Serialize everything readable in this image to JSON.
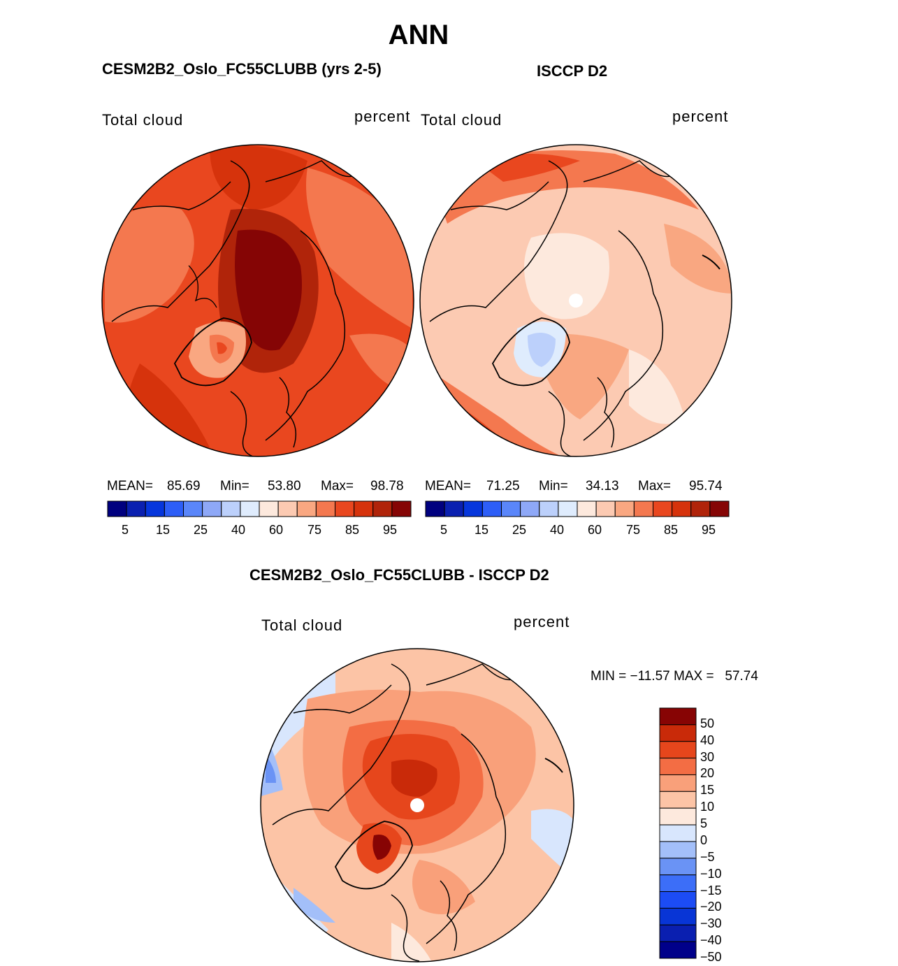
{
  "figure": {
    "title": "ANN"
  },
  "palettes": {
    "abs": [
      "#00007f",
      "#0a20b0",
      "#0636dc",
      "#2d5ef7",
      "#5a86fa",
      "#8ea8f7",
      "#bcd0fb",
      "#dfecfd",
      "#fde9dd",
      "#fccab2",
      "#f9a781",
      "#f4784f",
      "#e9471f",
      "#d6330c",
      "#b0240a",
      "#850505"
    ],
    "diff": [
      "#00008a",
      "#0a1fb0",
      "#0835d6",
      "#1c4cf5",
      "#3c6ef8",
      "#6a93f5",
      "#a3bff9",
      "#d8e6fd",
      "#fde9dd",
      "#fcc4a6",
      "#f9a07a",
      "#f36d44",
      "#e6461c",
      "#c92a09",
      "#870404"
    ]
  },
  "panels": [
    {
      "header": "CESM2B2_Oslo_FC55CLUBB (yrs 2-5)",
      "variable": "Total cloud",
      "units": "percent",
      "stats": {
        "mean_label": "MEAN=",
        "mean": "85.69",
        "min_label": "Min=",
        "min": "53.80",
        "max_label": "Max=",
        "max": "98.78"
      },
      "colorbar_ticks": [
        "5",
        "15",
        "25",
        "40",
        "60",
        "75",
        "85",
        "95"
      ]
    },
    {
      "header": "ISCCP D2",
      "variable": "Total cloud",
      "units": "percent",
      "stats": {
        "mean_label": "MEAN=",
        "mean": "71.25",
        "min_label": "Min=",
        "min": "34.13",
        "max_label": "Max=",
        "max": "95.74"
      },
      "colorbar_ticks": [
        "5",
        "15",
        "25",
        "40",
        "60",
        "75",
        "85",
        "95"
      ]
    }
  ],
  "difference": {
    "header": "CESM2B2_Oslo_FC55CLUBB - ISCCP D2",
    "variable": "Total cloud",
    "units": "percent",
    "minmax": "MIN = −11.57 MAX =   57.74",
    "colorbar_ticks": [
      "50",
      "40",
      "30",
      "20",
      "15",
      "10",
      "5",
      "0",
      "−5",
      "−10",
      "−15",
      "−20",
      "−30",
      "−40",
      "−50"
    ]
  }
}
